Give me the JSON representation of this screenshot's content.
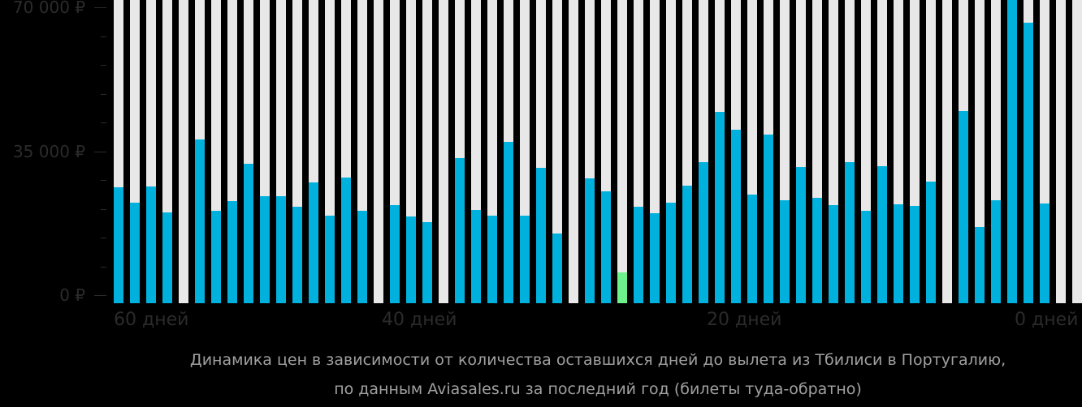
{
  "chart_data": {
    "type": "bar",
    "title": "Динамика цен в зависимости от количества оставшихся дней до вылета из Тбилиси в Португалию, по данным Aviasales.ru за последний год (билеты туда-обратно)",
    "xlabel": "",
    "ylabel": "",
    "ylim": [
      0,
      70000
    ],
    "grid": false,
    "legend": null,
    "x_tick_labels": [
      {
        "label": "60 дней",
        "index": 0
      },
      {
        "label": "40 дней",
        "index": 17
      },
      {
        "label": "20 дней",
        "index": 37
      },
      {
        "label": "0 дней",
        "index": 59
      }
    ],
    "y_tick_labels": [
      {
        "label": "70 000 ₽",
        "value": 70000
      },
      {
        "label": "35 000 ₽",
        "value": 35000
      },
      {
        "label": "0 ₽",
        "value": 0
      }
    ],
    "y_minor_step": 7000,
    "categories": [
      60,
      59,
      58,
      57,
      56,
      55,
      54,
      53,
      52,
      51,
      50,
      49,
      48,
      47,
      46,
      45,
      44,
      43,
      42,
      41,
      40,
      39,
      38,
      37,
      36,
      35,
      34,
      33,
      32,
      31,
      30,
      29,
      28,
      27,
      26,
      25,
      24,
      23,
      22,
      21,
      20,
      19,
      18,
      17,
      16,
      15,
      14,
      13,
      12,
      11,
      10,
      9,
      8,
      7,
      6,
      5,
      4,
      3,
      2,
      1
    ],
    "values": [
      26200,
      22500,
      26400,
      20100,
      null,
      37900,
      20500,
      22900,
      31900,
      24100,
      24100,
      21500,
      27400,
      19300,
      28600,
      20500,
      null,
      21900,
      19100,
      17800,
      null,
      33300,
      20700,
      19300,
      37300,
      19300,
      31000,
      15000,
      null,
      28400,
      25200,
      5500,
      21500,
      19900,
      22500,
      26600,
      32300,
      44600,
      40200,
      24500,
      39000,
      23100,
      31200,
      23700,
      21900,
      32300,
      20500,
      31400,
      22100,
      21700,
      27600,
      null,
      44800,
      16600,
      23100,
      71800,
      66300,
      22300,
      null,
      null
    ],
    "highlight_min_index": 31,
    "colors": {
      "bar": "#00b0dd",
      "bar_min": "#6ef08c",
      "column_bg": "#e8e8e8",
      "background": "#000000",
      "axis_text": "#2b2b2b",
      "caption_text": "#a0a0a0"
    }
  },
  "axis": {
    "y_labels": [
      "70 000 ₽",
      "35 000 ₽",
      "0 ₽"
    ],
    "x_labels": [
      "60 дней",
      "40 дней",
      "20 дней",
      "0 дней"
    ]
  },
  "caption": {
    "line1": "Динамика цен в зависимости от количества оставшихся дней до вылета из Тбилиси в Португалию,",
    "line2": "по данным Aviasales.ru за последний год (билеты туда-обратно)"
  }
}
